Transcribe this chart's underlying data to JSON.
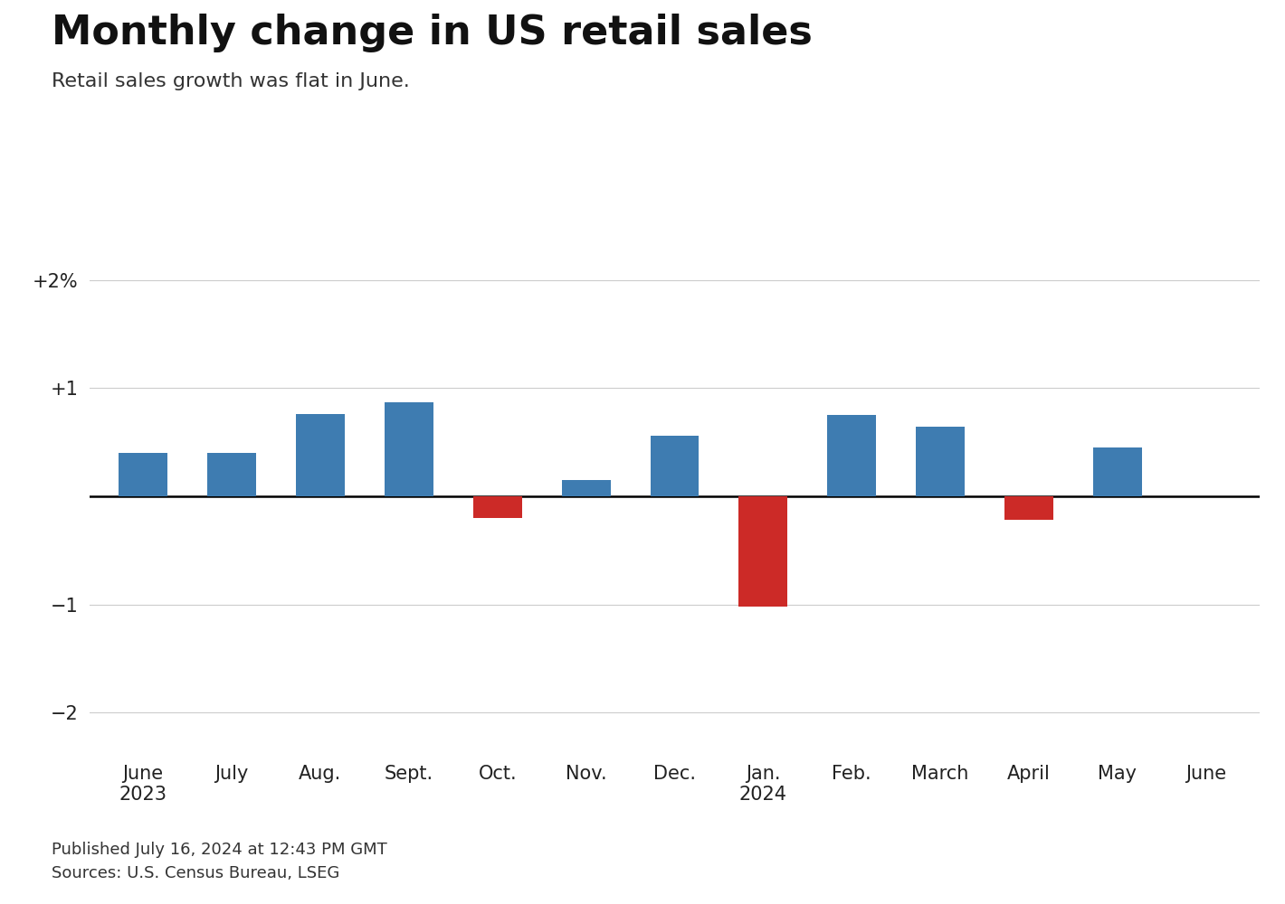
{
  "categories": [
    "June\n2023",
    "July",
    "Aug.",
    "Sept.",
    "Oct.",
    "Nov.",
    "Dec.",
    "Jan.\n2024",
    "Feb.",
    "March",
    "April",
    "May",
    "June"
  ],
  "values": [
    0.4,
    0.4,
    0.76,
    0.87,
    -0.2,
    0.15,
    0.56,
    -1.02,
    0.75,
    0.64,
    -0.22,
    0.45,
    0.0
  ],
  "bar_colors_positive": "#3e7cb1",
  "bar_colors_negative": "#cc2a27",
  "title": "Monthly change in US retail sales",
  "subtitle": "Retail sales growth was flat in June.",
  "yticks": [
    -2,
    -1,
    0,
    1,
    2
  ],
  "ytick_labels": [
    "−2",
    "−1",
    "",
    "+1",
    "+2%"
  ],
  "ylim": [
    -2.35,
    2.5
  ],
  "footer_line1": "Published July 16, 2024 at 12:43 PM GMT",
  "footer_line2": "Sources: U.S. Census Bureau, LSEG",
  "title_fontsize": 32,
  "subtitle_fontsize": 16,
  "footer_fontsize": 13,
  "tick_fontsize": 15,
  "background_color": "#ffffff"
}
